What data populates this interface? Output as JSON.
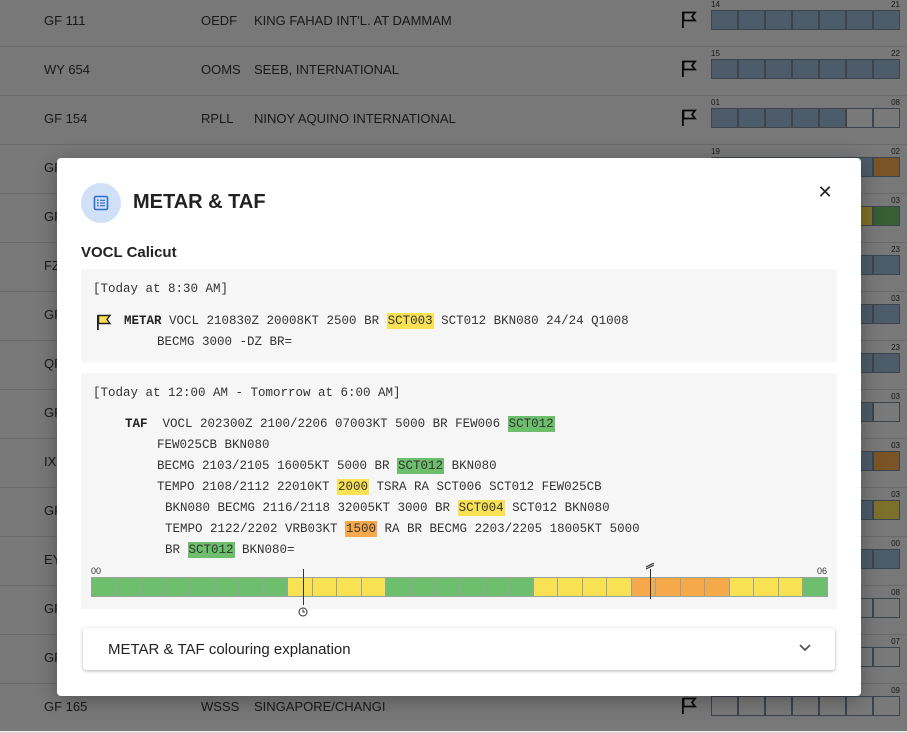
{
  "background_rows": [
    {
      "flight": "GF 111",
      "icao": "OEDF",
      "name": "KING FAHAD INT'L. AT DAMMAM",
      "start": "14",
      "end": "21"
    },
    {
      "flight": "WY 654",
      "icao": "OOMS",
      "name": "SEEB, INTERNATIONAL",
      "start": "15",
      "end": "22"
    },
    {
      "flight": "GF 154",
      "icao": "RPLL",
      "name": "NINOY AQUINO INTERNATIONAL",
      "start": "01",
      "end": "08"
    },
    {
      "flight": "GF",
      "icao": "",
      "name": "",
      "start": "19",
      "end": "02"
    },
    {
      "flight": "GF",
      "icao": "",
      "name": "",
      "start": "",
      "end": "03"
    },
    {
      "flight": "FZ",
      "icao": "",
      "name": "",
      "start": "",
      "end": "23"
    },
    {
      "flight": "GF",
      "icao": "",
      "name": "",
      "start": "",
      "end": "03"
    },
    {
      "flight": "QF",
      "icao": "",
      "name": "",
      "start": "",
      "end": "23"
    },
    {
      "flight": "GF",
      "icao": "",
      "name": "",
      "start": "",
      "end": "03"
    },
    {
      "flight": "IX",
      "icao": "",
      "name": "",
      "start": "",
      "end": "03"
    },
    {
      "flight": "GF",
      "icao": "",
      "name": "",
      "start": "",
      "end": "03"
    },
    {
      "flight": "EY",
      "icao": "",
      "name": "",
      "start": "",
      "end": "00"
    },
    {
      "flight": "GF",
      "icao": "",
      "name": "",
      "start": "",
      "end": "08"
    },
    {
      "flight": "GF",
      "icao": "",
      "name": "",
      "start": "",
      "end": "07"
    },
    {
      "flight": "GF 165",
      "icao": "WSSS",
      "name": "SINGAPORE/CHANGI",
      "start": "",
      "end": "09"
    }
  ],
  "dialog": {
    "title": "METAR & TAF",
    "station": "VOCL Calicut",
    "metar": {
      "time": "[Today at 8:30 AM]",
      "label": "METAR",
      "line1_a": "VOCL 210830Z 20008KT 2500 BR ",
      "line1_hl": "SCT003",
      "line1_b": " SCT012 BKN080 24/24 Q1008",
      "line2": "BECMG 3000 -DZ BR="
    },
    "taf": {
      "time": "[Today at 12:00 AM - Tomorrow at 6:00 AM]",
      "label": "TAF",
      "l1_a": "VOCL 202300Z 2100/2206 07003KT 5000 BR FEW006 ",
      "l1_hl": "SCT012",
      "l2": "FEW025CB BKN080",
      "l3_a": "BECMG 2103/2105 16005KT 5000 BR ",
      "l3_hl": "SCT012",
      "l3_b": " BKN080",
      "l4_a": "TEMPO 2108/2112 22010KT ",
      "l4_hl": "2000",
      "l4_b": " TSRA RA SCT006 SCT012 FEW025CB",
      "l5_a": "BKN080 BECMG 2116/2118 32005KT 3000 BR ",
      "l5_hl": "SCT004",
      "l5_b": " SCT012 BKN080",
      "l6_a": "TEMPO 2122/2202 VRB03KT ",
      "l6_hl": "1500",
      "l6_b": " RA BR BECMG 2203/2205 18005KT 5000",
      "l7_a": "BR ",
      "l7_hl": "SCT012",
      "l7_b": " BKN080="
    },
    "timeline": {
      "start_label": "00",
      "end_label": "06",
      "segments": [
        "g",
        "g",
        "g",
        "g",
        "g",
        "g",
        "g",
        "g",
        "y",
        "y",
        "y",
        "y",
        "g",
        "g",
        "g",
        "g",
        "g",
        "g",
        "y",
        "y",
        "y",
        "y",
        "o",
        "o",
        "o",
        "o",
        "y",
        "y",
        "y",
        "g"
      ],
      "now_fraction": 0.288,
      "forecast_fraction": 0.76
    },
    "explanation_label": "METAR & TAF colouring explanation"
  },
  "colors": {
    "green": "#6dbf6d",
    "yellow": "#f9e154",
    "orange": "#f5a94a",
    "blue": "#9ab8d6"
  }
}
